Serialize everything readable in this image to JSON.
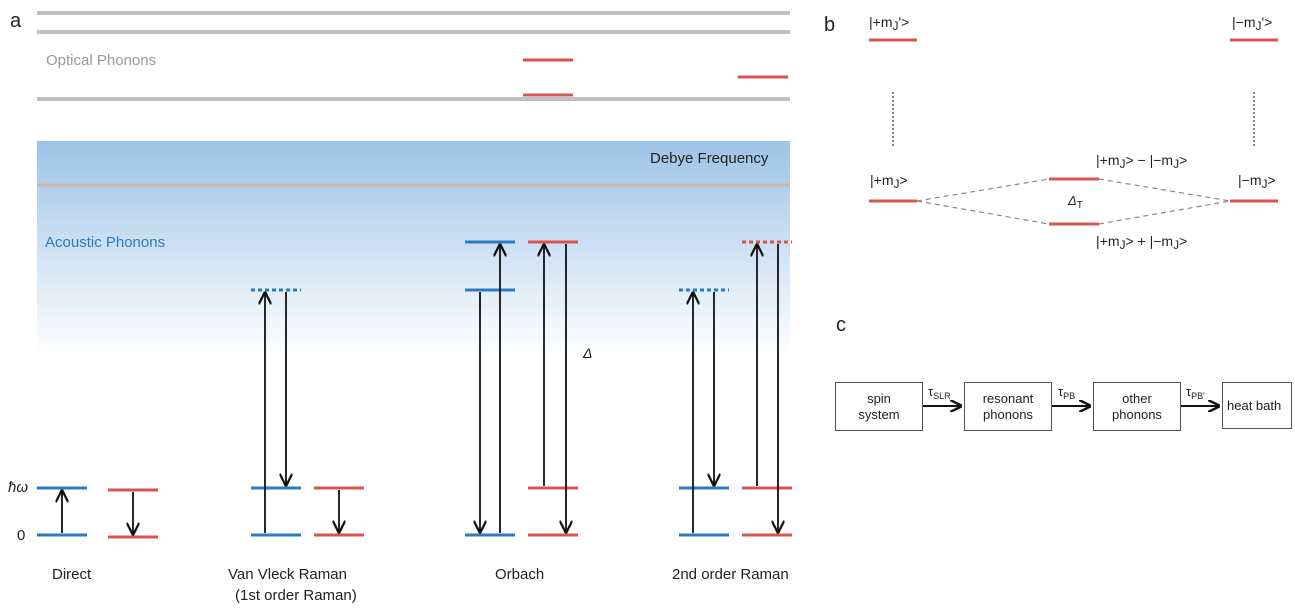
{
  "panels": {
    "a": "a",
    "b": "b",
    "c": "c"
  },
  "panel_a": {
    "optical_phonons": "Optical Phonons",
    "debye_frequency": "Debye Frequency",
    "acoustic_phonons": "Acoustic Phonons",
    "hbar_omega": "ħω",
    "zero": "0",
    "delta": "Δ",
    "processes": [
      "Direct",
      "Van Vleck Raman",
      "Orbach",
      "2nd order Raman"
    ],
    "van_vleck_sub": "(1st order Raman)",
    "colors": {
      "blue": "#2a7bc0",
      "red": "#d9534f",
      "gray": "#b8b8b8",
      "arrow": "#111111"
    }
  },
  "panel_b": {
    "top_left": "|+m",
    "top_left_sub": "J",
    "top_left_tail": "'>",
    "top_right": "|−m",
    "top_right_sub": "J",
    "top_right_tail": "'>",
    "mid_left": "|+m",
    "mid_left_sub": "J",
    "mid_left_tail": ">",
    "mid_right": "|−m",
    "mid_right_sub": "J",
    "mid_right_tail": ">",
    "upper_combo": "|+m",
    "upper_combo_sub1": "J",
    "upper_combo_mid": "> − |−m",
    "upper_combo_sub2": "J",
    "upper_combo_tail": ">",
    "lower_combo": "|+m",
    "lower_combo_sub1": "J",
    "lower_combo_mid": "> + |−m",
    "lower_combo_sub2": "J",
    "lower_combo_tail": ">",
    "tunnel_delta": "Δ",
    "tunnel_sub": "T"
  },
  "panel_c": {
    "boxes": [
      {
        "line1": "spin",
        "line2": "system"
      },
      {
        "line1": "resonant",
        "line2": "phonons"
      },
      {
        "line1": "other",
        "line2": "phonons"
      },
      {
        "line1": "heat bath",
        "line2": ""
      }
    ],
    "taus": [
      {
        "sym": "τ",
        "sub": "SLR"
      },
      {
        "sym": "τ",
        "sub": "PB"
      },
      {
        "sym": "τ",
        "sub": "PB'"
      }
    ]
  }
}
